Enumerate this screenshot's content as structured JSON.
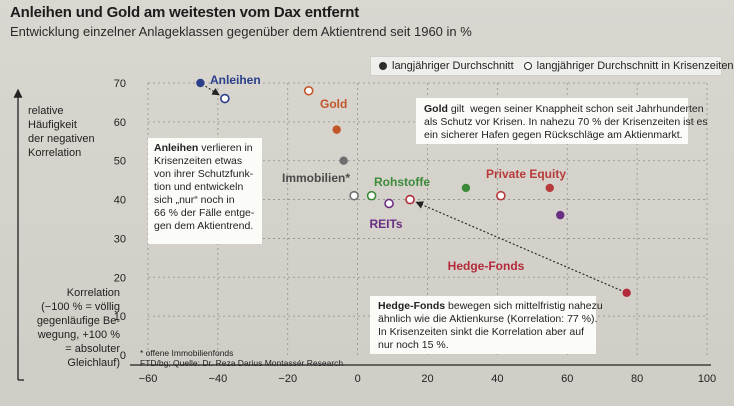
{
  "title": "Anleihen und Gold am weitesten vom Dax entfernt",
  "subtitle": "Entwicklung einzelner Anlageklassen gegenüber dem Aktientrend seit 1960 in %",
  "legend": {
    "filled": "langjähriger Durchschnitt",
    "open": "langjähriger Durchschnitt in Krisenzeiten"
  },
  "ylabel_lines": "relative\nHäufigkeit\nder negativen\nKorrelation",
  "correlation_note": "Korrelation\n(−100 % = völlig\ngegenläufige Be-\nwegung, +100 %\n= absoluter\nGleichlauf)",
  "boxes": {
    "anleihen_title": "Anleihen",
    "anleihen_text": " verlieren in\nKrisenzeiten etwas\nvon ihrer Schutzfunk-\ntion und entwickeln\nsich „nur“ noch in\n66 % der Fälle entge-\ngen dem Aktientrend.",
    "gold_title": "Gold",
    "gold_text": " gilt  wegen seiner Knappheit schon seit Jahrhunderten\nals Schutz vor Krisen. In nahezu 70 % der Krisenzeiten ist es\nein sicherer Hafen gegen Rückschläge am Aktienmarkt.",
    "hedge_title": "Hedge-Fonds",
    "hedge_text": " bewegen sich mittelfristig nahezu\nähnlich wie die Aktienkurse (Korrelation: 77 %).\nIn Krisenzeiten sinkt die Korrelation aber auf\nnur noch 15 %."
  },
  "footnote": "* offene Immobilienfonds",
  "source": "FTD/bg; Quelle: Dr. Reza Darius Montassér Research",
  "colors": {
    "Anleihen": "#2b3f8a",
    "Gold": "#c2552a",
    "Immobilien": "#6e6e6e",
    "Rohstoffe": "#3d8a3a",
    "Private Equity": "#b83b3b",
    "REITs": "#6a2f82",
    "Hedge-Fonds": "#b52a3a",
    "grid": "#8f8f8f",
    "axis": "#222222"
  },
  "chart_data": {
    "type": "scatter",
    "title": "Anleihen und Gold am weitesten vom Dax entfernt",
    "subtitle": "Entwicklung einzelner Anlageklassen gegenüber dem Aktientrend seit 1960 in %",
    "xlim": [
      -60,
      100
    ],
    "ylim": [
      0,
      70
    ],
    "xticks": [
      -60,
      -40,
      -20,
      0,
      20,
      40,
      60,
      80,
      100
    ],
    "yticks": [
      0,
      10,
      20,
      30,
      40,
      50,
      60,
      70
    ],
    "xtick_labels": [
      "−60",
      "−40",
      "−20",
      "0",
      "20",
      "40",
      "60",
      "80",
      "100"
    ],
    "ytick_labels": [
      "0",
      "10",
      "20",
      "30",
      "40",
      "50",
      "60",
      "70"
    ],
    "grid": true,
    "legend_position": "top-right",
    "series": [
      {
        "name": "langjähriger Durchschnitt",
        "marker": "filled",
        "points": [
          {
            "label": "Anleihen",
            "x": -45,
            "y": 70
          },
          {
            "label": "Gold",
            "x": -6,
            "y": 58
          },
          {
            "label": "Immobilien",
            "x": -4,
            "y": 50
          },
          {
            "label": "Private Equity",
            "x": 55,
            "y": 43
          },
          {
            "label": "Rohstoffe",
            "x": 31,
            "y": 43
          },
          {
            "label": "REITs",
            "x": 58,
            "y": 36
          },
          {
            "label": "Hedge-Fonds",
            "x": 77,
            "y": 16
          }
        ]
      },
      {
        "name": "langjähriger Durchschnitt in Krisenzeiten",
        "marker": "open",
        "points": [
          {
            "label": "Anleihen",
            "x": -38,
            "y": 66
          },
          {
            "label": "Gold",
            "x": -14,
            "y": 68
          },
          {
            "label": "Immobilien",
            "x": -1,
            "y": 41
          },
          {
            "label": "Rohstoffe",
            "x": 4,
            "y": 41
          },
          {
            "label": "REITs",
            "x": 9,
            "y": 39
          },
          {
            "label": "Hedge-Fonds",
            "x": 15,
            "y": 40
          },
          {
            "label": "Private Equity",
            "x": 41,
            "y": 41
          }
        ]
      }
    ],
    "point_labels": [
      {
        "text": "Anleihen",
        "key": "Anleihen"
      },
      {
        "text": "Gold",
        "key": "Gold"
      },
      {
        "text": "Immobilien*",
        "key": "Immobilien"
      },
      {
        "text": "Rohstoffe",
        "key": "Rohstoffe"
      },
      {
        "text": "Private Equity",
        "key": "Private Equity"
      },
      {
        "text": "REITs",
        "key": "REITs"
      },
      {
        "text": "Hedge-Fonds",
        "key": "Hedge-Fonds"
      }
    ],
    "arrows": [
      {
        "from": "Anleihen",
        "note": "filled to open"
      },
      {
        "from": "Hedge-Fonds",
        "note": "filled to open"
      }
    ]
  }
}
